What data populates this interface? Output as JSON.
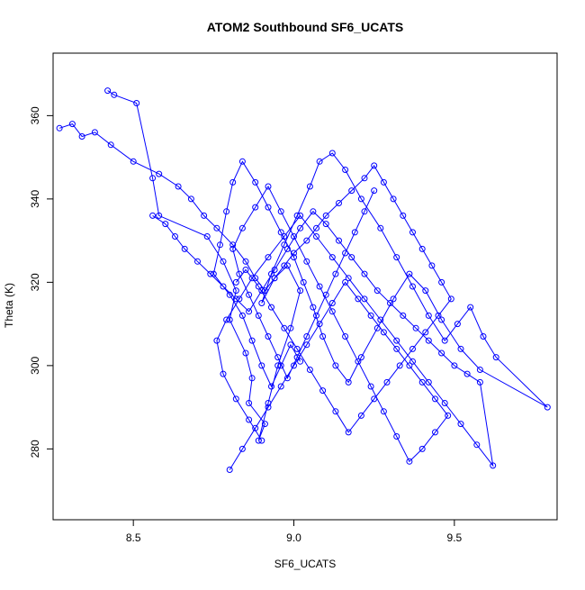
{
  "chart_data": {
    "type": "line",
    "title": "ATOM2 Southbound SF6_UCATS",
    "xlabel": "SF6_UCATS",
    "ylabel": "Theta (K)",
    "xlim": [
      8.25,
      9.82
    ],
    "ylim": [
      263,
      375
    ],
    "x_ticks": [
      8.5,
      9.0,
      9.5
    ],
    "x_tick_labels": [
      "8.5",
      "9.0",
      "9.5"
    ],
    "y_ticks": [
      280,
      300,
      320,
      340,
      360
    ],
    "y_tick_labels": [
      "280",
      "300",
      "320",
      "340",
      "360"
    ],
    "grid": false,
    "marker": "open-circle",
    "colors": {
      "series": "#0000ff",
      "axis": "#000000",
      "background": "#ffffff"
    },
    "series": [
      {
        "x": [
          8.42,
          8.44,
          8.51,
          8.56,
          8.58,
          8.73,
          8.78,
          8.82,
          8.8,
          8.85,
          8.87,
          8.86,
          8.91,
          8.89,
          8.92,
          8.95,
          8.99,
          9.02,
          8.98,
          8.94,
          8.9,
          8.93,
          8.97,
          9.01,
          9.05,
          9.08,
          9.12,
          9.16,
          9.21,
          9.27,
          9.32,
          9.37,
          9.42,
          9.47,
          9.51,
          9.55,
          9.59,
          9.63,
          9.79,
          9.58,
          9.52,
          9.46,
          9.41,
          9.36,
          9.31,
          9.26,
          9.21,
          9.17,
          9.13,
          9.09,
          9.06,
          9.03,
          9.0,
          8.96,
          8.92,
          8.88,
          8.84,
          8.81,
          8.79,
          8.77,
          8.75,
          8.8,
          8.84,
          8.87,
          8.9,
          8.93,
          8.96,
          8.99,
          9.02
        ],
        "y": [
          366,
          365,
          363,
          345,
          336,
          331,
          325,
          318,
          311,
          303,
          297,
          291,
          286,
          282,
          291,
          300,
          309,
          318,
          324,
          321,
          315,
          322,
          329,
          336,
          343,
          349,
          351,
          347,
          340,
          333,
          326,
          319,
          312,
          306,
          310,
          314,
          307,
          302,
          290,
          299,
          304,
          311,
          318,
          322,
          316,
          309,
          302,
          296,
          300,
          307,
          314,
          320,
          326,
          332,
          338,
          344,
          349,
          344,
          337,
          329,
          322,
          317,
          312,
          306,
          300,
          295,
          300,
          305,
          301
        ]
      },
      {
        "x": [
          8.27,
          8.31,
          8.34,
          8.38,
          8.43,
          8.5,
          8.58,
          8.64,
          8.68,
          8.72,
          8.76,
          8.81,
          8.85,
          8.88,
          8.91,
          8.94,
          8.97,
          9.0,
          9.04,
          9.07,
          9.1,
          9.14,
          9.18,
          9.22,
          9.25,
          9.28,
          9.31,
          9.34,
          9.37,
          9.4,
          9.43,
          9.46,
          9.49,
          9.45,
          9.41,
          9.37,
          9.33,
          9.29,
          9.25,
          9.21,
          9.17,
          9.13,
          9.09,
          9.05,
          9.01,
          8.97,
          8.93,
          8.89,
          8.85,
          8.82
        ],
        "y": [
          357,
          358,
          355,
          356,
          353,
          349,
          346,
          343,
          340,
          336,
          333,
          329,
          325,
          321,
          318,
          321,
          324,
          327,
          330,
          333,
          336,
          339,
          342,
          345,
          348,
          344,
          340,
          336,
          332,
          328,
          324,
          320,
          316,
          312,
          308,
          304,
          300,
          296,
          292,
          288,
          284,
          289,
          294,
          299,
          304,
          309,
          314,
          319,
          323,
          320
        ]
      },
      {
        "x": [
          8.56,
          8.6,
          8.63,
          8.66,
          8.7,
          8.74,
          8.78,
          8.82,
          8.86,
          8.9,
          8.94,
          8.98,
          9.02,
          9.06,
          9.1,
          9.14,
          9.18,
          9.22,
          9.26,
          9.3,
          9.34,
          9.38,
          9.42,
          9.46,
          9.5,
          9.54,
          9.58,
          9.62,
          9.57,
          9.52,
          9.47,
          9.42,
          9.37,
          9.32,
          9.27,
          9.22,
          9.17,
          9.12,
          9.07,
          9.02,
          8.97,
          8.92,
          8.87,
          8.83,
          8.79,
          8.76,
          8.78,
          8.82,
          8.86,
          8.9
        ],
        "y": [
          336,
          334,
          331,
          328,
          325,
          322,
          319,
          316,
          313,
          318,
          323,
          328,
          333,
          337,
          334,
          330,
          326,
          322,
          318,
          315,
          312,
          309,
          306,
          303,
          300,
          298,
          296,
          276,
          281,
          286,
          291,
          296,
          301,
          306,
          311,
          316,
          321,
          326,
          331,
          336,
          331,
          326,
          321,
          316,
          311,
          306,
          298,
          292,
          287,
          282
        ]
      },
      {
        "x": [
          8.8,
          8.84,
          8.88,
          8.92,
          8.96,
          9.0,
          9.04,
          9.08,
          9.12,
          9.16,
          9.2,
          9.24,
          9.28,
          9.32,
          9.36,
          9.4,
          9.44,
          9.48,
          9.44,
          9.4,
          9.36,
          9.32,
          9.28,
          9.24,
          9.2,
          9.16,
          9.12,
          9.08,
          9.04,
          9.0,
          8.96,
          8.92,
          8.88,
          8.84,
          8.81,
          8.83,
          8.86,
          8.89,
          8.92,
          8.95,
          8.98,
          9.01,
          9.04,
          9.07,
          9.1,
          9.13,
          9.16,
          9.19,
          9.22,
          9.25
        ],
        "y": [
          275,
          280,
          285,
          290,
          295,
          300,
          305,
          310,
          315,
          320,
          316,
          312,
          308,
          304,
          300,
          296,
          292,
          288,
          284,
          280,
          277,
          283,
          289,
          295,
          301,
          307,
          313,
          319,
          325,
          331,
          337,
          343,
          338,
          333,
          328,
          322,
          317,
          312,
          307,
          302,
          297,
          302,
          307,
          312,
          317,
          322,
          327,
          332,
          337,
          342
        ]
      }
    ]
  }
}
